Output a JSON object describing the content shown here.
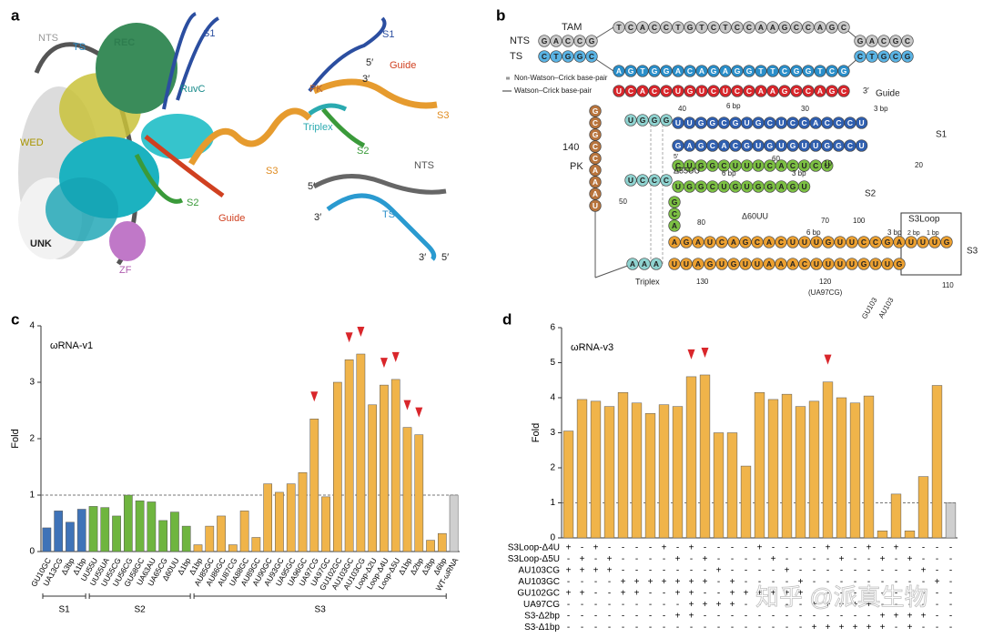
{
  "panels": [
    "a",
    "b",
    "c",
    "d"
  ],
  "structure_a": {
    "labels": [
      "NTS",
      "TS",
      "REC",
      "S1",
      "RuvC",
      "WED",
      "S2",
      "Guide",
      "S3",
      "UNK",
      "ZF",
      "S1",
      "5′",
      "3′",
      "Guide",
      "PK",
      "Triplex",
      "S3",
      "S2",
      "NTS",
      "5′",
      "3′",
      "TS",
      "3′",
      "5′"
    ]
  },
  "diagram_b": {
    "labels": [
      "TAM",
      "NTS",
      "TS",
      "Non-Watson–Crick base-pair",
      "Watson–Crick base-pair",
      "3′",
      "Guide",
      "40",
      "6 bp",
      "30",
      "3 bp",
      "140",
      "PK",
      "S1",
      "5′",
      "20",
      "60",
      "10",
      "Δ55UU",
      "6 bp",
      "3 bp",
      "50",
      "S2",
      "80",
      "Δ60UU",
      "70",
      "100",
      "6 bp",
      "3 bp",
      "2 bp",
      "1 bp",
      "S3Loop",
      "S3",
      "Triplex",
      "130",
      "120",
      "(UA97CG)",
      "GU103",
      "AU103",
      "110"
    ],
    "strands": [
      {
        "seq": "TCACCTGTCTCCAAGCCAGC",
        "color": "#c8c8c8"
      },
      {
        "seq": "GACCG",
        "color": "#c8c8c8"
      },
      {
        "seq": "GACGC",
        "color": "#c8c8c8"
      },
      {
        "seq": "CTGGC",
        "color": "#5ab4e5"
      },
      {
        "seq": "CTGCG",
        "color": "#5ab4e5"
      },
      {
        "seq": "AGTGGACAGAGGTTCGGTCG",
        "color": "#2a8ec9"
      },
      {
        "seq": "UCACCUGUCUCCAAGCCAGC",
        "color": "#d9262b"
      },
      {
        "seq": "GCGCCAAAU",
        "color": "#b8743c"
      },
      {
        "seq": "UGGG",
        "color": "#8fd3d0"
      },
      {
        "seq": "UUGGCGUGCUCCACCCU",
        "color": "#2f5fb0"
      },
      {
        "seq": "GAGCACGUGUGUUGGCU",
        "color": "#2f5fb0"
      },
      {
        "seq": "UCCC",
        "color": "#8fd3d0"
      },
      {
        "seq": "CUGGCUUUCACUCU",
        "color": "#7cc043"
      },
      {
        "seq": "UGGCUGUGGAGU",
        "color": "#7cc043"
      },
      {
        "seq": "GCA",
        "color": "#7cc043"
      },
      {
        "seq": "AGAUCAGCACUUUGUUCCGAUUUG",
        "color": "#eca030"
      },
      {
        "seq": "UUAGUGUUAAACUUUUGUUG",
        "color": "#eca030"
      },
      {
        "seq": "AAA",
        "color": "#8fd3d0"
      }
    ]
  },
  "watermark": "知乎 @派真生物",
  "chart_data": [
    {
      "type": "bar",
      "title": "ωRNA-v1",
      "ylabel": "Fold",
      "ylim": [
        0,
        4
      ],
      "yticks": [
        0,
        1,
        2,
        3,
        4
      ],
      "reference_line": 1,
      "marker_color": "#d9262b",
      "groups": [
        {
          "name": "S1",
          "color": "#3f73b8",
          "categories": [
            "GU10GC",
            "UA13CG",
            "Δ3bp",
            "Δ1bp"
          ],
          "values": [
            0.42,
            0.72,
            0.52,
            0.75
          ],
          "marked": [
            false,
            false,
            false,
            false
          ]
        },
        {
          "name": "S2",
          "color": "#6fb53f",
          "categories": [
            "UU55U",
            "UU55UA",
            "UU55CG",
            "UU56CG",
            "GU58GC",
            "UA63AU",
            "UA65CG",
            "Δ60UU",
            "Δ1bp"
          ],
          "values": [
            0.8,
            0.78,
            0.63,
            1.0,
            0.9,
            0.88,
            0.55,
            0.7,
            0.45
          ],
          "marked": [
            false,
            false,
            false,
            false,
            false,
            false,
            false,
            false,
            false
          ]
        },
        {
          "name": "S3",
          "color": "#f0b44a",
          "categories": [
            "Δ1bp",
            "AU85GC",
            "AU86GC",
            "AU87CG",
            "UA88GC",
            "AU89GC",
            "AU90GC",
            "AU93GC",
            "UA95GC",
            "UA96GC",
            "UA97CG",
            "UA97GC",
            "GU102GC",
            "AU103GC",
            "AU103CG",
            "Loop-Δ2U",
            "Loop-Δ4U",
            "Loop-Δ5U",
            "Δ1bp",
            "Δ2bp",
            "Δ3bp",
            "Δ6bp"
          ],
          "values": [
            0.12,
            0.45,
            0.63,
            0.12,
            0.72,
            0.25,
            1.2,
            1.05,
            1.2,
            1.4,
            2.35,
            0.97,
            3.0,
            3.4,
            3.5,
            2.6,
            2.95,
            3.05,
            2.2,
            2.07,
            0.2,
            0.32
          ],
          "marked": [
            false,
            false,
            false,
            false,
            false,
            false,
            false,
            false,
            false,
            false,
            true,
            false,
            false,
            true,
            true,
            false,
            true,
            true,
            true,
            true,
            false,
            false
          ]
        },
        {
          "color": "#cfcfcf",
          "categories": [
            "WT-ωRNA"
          ],
          "values": [
            1.0
          ],
          "marked": [
            false
          ]
        }
      ]
    },
    {
      "type": "bar",
      "title": "ωRNA-v3",
      "ylabel": "Fold",
      "ylim": [
        0,
        6
      ],
      "yticks": [
        0,
        1,
        2,
        3,
        4,
        5,
        6
      ],
      "reference_line": 1,
      "marker_color": "#d9262b",
      "groups": [
        {
          "color": "#f0b44a",
          "values": [
            3.05,
            3.95,
            3.9,
            3.75,
            4.15,
            3.85,
            3.55,
            3.8,
            3.75,
            4.6,
            4.65,
            3.0,
            3.0,
            2.05,
            4.15,
            3.95,
            4.1,
            3.75,
            3.9,
            4.45,
            4.0,
            3.85,
            4.05,
            0.2,
            1.25,
            0.2,
            1.75,
            4.35
          ],
          "marked": [
            false,
            false,
            false,
            false,
            false,
            false,
            false,
            false,
            false,
            true,
            true,
            false,
            false,
            false,
            false,
            false,
            false,
            false,
            false,
            true,
            false,
            false,
            false,
            false,
            false,
            false,
            false,
            false
          ]
        },
        {
          "color": "#cfcfcf",
          "values": [
            1.0
          ],
          "marked": [
            false
          ]
        }
      ],
      "table": {
        "rows": [
          {
            "label": "S3Loop-Δ4U",
            "cells": [
              "+",
              "-",
              "+",
              "-",
              "-",
              "-",
              "-",
              "+",
              "-",
              "+",
              "-",
              "-",
              "-",
              "-",
              "+",
              "-",
              "-",
              "-",
              "-",
              "+",
              "-",
              "-",
              "+",
              "-",
              "+",
              "-",
              "-",
              "-",
              "-"
            ]
          },
          {
            "label": "S3Loop-Δ5U",
            "cells": [
              "-",
              "+",
              "-",
              "+",
              "-",
              "-",
              "-",
              "-",
              "+",
              "-",
              "+",
              "-",
              "-",
              "-",
              "-",
              "+",
              "-",
              "-",
              "-",
              "-",
              "+",
              "-",
              "-",
              "+",
              "-",
              "+",
              "-",
              "-",
              "-"
            ]
          },
          {
            "label": "AU103CG",
            "cells": [
              "+",
              "+",
              "+",
              "+",
              "-",
              "-",
              "-",
              "-",
              "-",
              "-",
              "-",
              "+",
              "-",
              "-",
              "-",
              "-",
              "+",
              "-",
              "-",
              "-",
              "-",
              "-",
              "-",
              "-",
              "-",
              "-",
              "+",
              "-",
              "-"
            ]
          },
          {
            "label": "AU103GC",
            "cells": [
              "-",
              "-",
              "-",
              "-",
              "+",
              "+",
              "+",
              "+",
              "+",
              "+",
              "+",
              "-",
              "+",
              "-",
              "-",
              "-",
              "-",
              "+",
              "-",
              "-",
              "-",
              "-",
              "-",
              "-",
              "-",
              "-",
              "-",
              "+",
              "-"
            ]
          },
          {
            "label": "GU102GC",
            "cells": [
              "+",
              "+",
              "-",
              "-",
              "+",
              "+",
              "-",
              "-",
              "+",
              "+",
              "-",
              "-",
              "+",
              "+",
              "+",
              "+",
              "+",
              "+",
              "-",
              "-",
              "-",
              "-",
              "-",
              "-",
              "-",
              "-",
              "-",
              "-",
              "-"
            ]
          },
          {
            "label": "UA97CG",
            "cells": [
              "-",
              "-",
              "-",
              "-",
              "-",
              "-",
              "-",
              "-",
              "-",
              "+",
              "+",
              "+",
              "+",
              "-",
              "-",
              "-",
              "-",
              "-",
              "+",
              "+",
              "+",
              "+",
              "+",
              "-",
              "-",
              "-",
              "-",
              "-",
              "-"
            ]
          },
          {
            "label": "S3-Δ2bp",
            "cells": [
              "-",
              "-",
              "-",
              "-",
              "-",
              "-",
              "-",
              "-",
              "+",
              "+",
              "-",
              "-",
              "-",
              "-",
              "-",
              "-",
              "-",
              "-",
              "-",
              "-",
              "-",
              "-",
              "-",
              "+",
              "+",
              "+",
              "+",
              "-",
              "-"
            ]
          },
          {
            "label": "S3-Δ1bp",
            "cells": [
              "-",
              "-",
              "-",
              "-",
              "-",
              "-",
              "-",
              "-",
              "-",
              "-",
              "-",
              "-",
              "-",
              "-",
              "-",
              "-",
              "-",
              "-",
              "+",
              "+",
              "+",
              "+",
              "+",
              "+",
              "-",
              "+",
              "-",
              "-",
              "-"
            ]
          }
        ]
      }
    }
  ]
}
